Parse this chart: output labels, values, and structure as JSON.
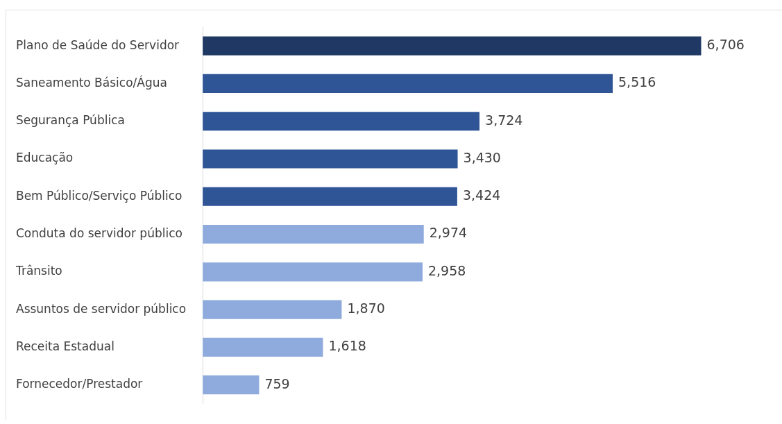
{
  "chart_data": {
    "type": "bar",
    "orientation": "horizontal",
    "categories": [
      "Plano de Saúde do Servidor",
      "Saneamento Básico/Água",
      "Segurança Pública",
      "Educação",
      "Bem Público/Serviço Público",
      "Conduta do servidor público",
      "Trânsito",
      "Assuntos de servidor público",
      "Receita Estadual",
      "Fornecedor/Prestador"
    ],
    "values": [
      6706,
      5516,
      3724,
      3430,
      3424,
      2974,
      2958,
      1870,
      1618,
      759
    ],
    "colors": [
      "#1f3864",
      "#2f5597",
      "#2f5597",
      "#2f5597",
      "#2f5597",
      "#8faadc",
      "#8faadc",
      "#8faadc",
      "#8faadc",
      "#8faadc"
    ],
    "value_labels": [
      "6,706",
      "5,516",
      "3,724",
      "3,430",
      "3,424",
      "2,974",
      "2,958",
      "1,870",
      "1,618",
      "759"
    ],
    "tick_labels": "y"
  }
}
